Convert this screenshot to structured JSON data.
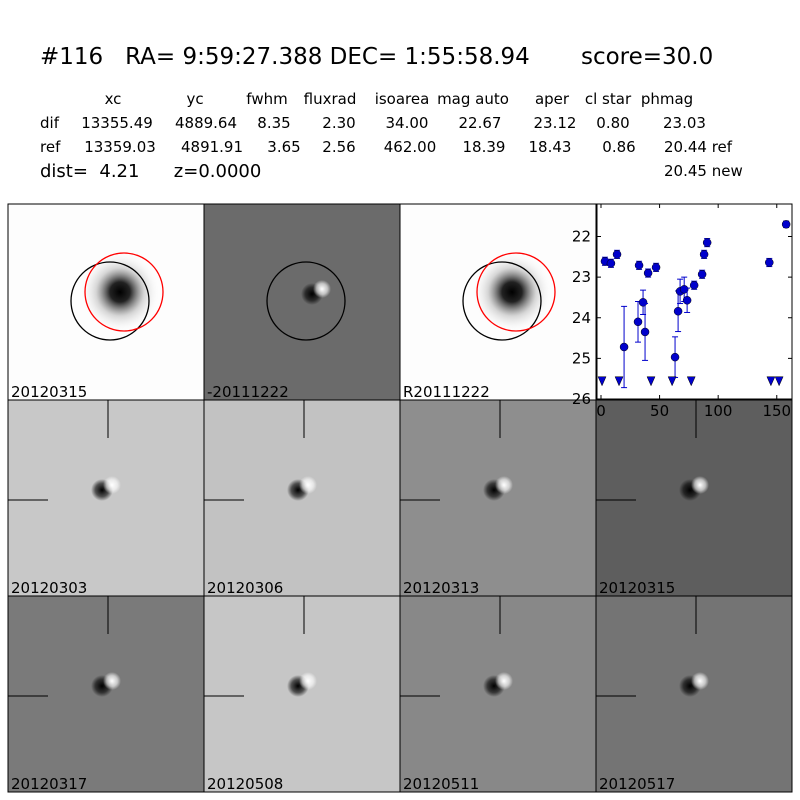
{
  "header": {
    "title": "#116   RA= 9:59:27.388 DEC= 1:55:58.94       score=30.0",
    "columns": [
      "xc",
      "yc",
      "fwhm",
      "fluxrad",
      "isoarea",
      "mag auto",
      "aper",
      "cl star",
      "phmag"
    ],
    "rows": [
      {
        "label": "dif",
        "cells": [
          "13355.49",
          "4889.64",
          "8.35",
          "2.30",
          "34.00",
          "22.67",
          "23.12",
          "0.80",
          "23.03"
        ]
      },
      {
        "label": "ref",
        "cells": [
          "13359.03",
          "4891.91",
          "3.65",
          "2.56",
          "462.00",
          "18.39",
          "18.43",
          "0.86",
          "20.44 ref"
        ]
      }
    ],
    "extra_phmag": "20.45 new",
    "dist_line": "dist=  4.21      z=0.0000"
  },
  "panels": [
    {
      "label": "20120315",
      "background": "#fdfdfd",
      "blob": "dark",
      "circles": true,
      "label_color": "#000"
    },
    {
      "label": "-20111222",
      "background": "#6b6b6b",
      "blob": "dipole",
      "circles": "black",
      "label_color": "#000"
    },
    {
      "label": "R20111222",
      "background": "#fdfdfd",
      "blob": "dark",
      "circles": true,
      "label_color": "#000"
    },
    {
      "label": "20120303",
      "background": "#c8c8c8",
      "blob": "dipole",
      "crosshair": true,
      "label_color": "#000"
    },
    {
      "label": "20120306",
      "background": "#c2c2c2",
      "blob": "dipole",
      "crosshair": true,
      "label_color": "#000"
    },
    {
      "label": "20120313",
      "background": "#8e8e8e",
      "blob": "dipole",
      "crosshair": true,
      "label_color": "#000"
    },
    {
      "label": "20120315",
      "background": "#5e5e5e",
      "blob": "dipole",
      "crosshair": true,
      "label_color": "#ff0000"
    },
    {
      "label": "20120317",
      "background": "#7a7a7a",
      "blob": "dipole",
      "crosshair": true,
      "label_color": "#000"
    },
    {
      "label": "20120508",
      "background": "#c6c6c6",
      "blob": "dipole",
      "crosshair": true,
      "label_color": "#000"
    },
    {
      "label": "20120511",
      "background": "#888888",
      "blob": "dipole",
      "crosshair": true,
      "label_color": "#000"
    },
    {
      "label": "20120517",
      "background": "#747474",
      "blob": "dipole",
      "crosshair": true,
      "label_color": "#000"
    }
  ],
  "light_curve": {
    "type": "scatter",
    "color": "#0000cc",
    "xlim": [
      -3.4,
      163
    ],
    "ylim": [
      26,
      21.2
    ],
    "xticks": [
      0,
      50,
      100,
      150
    ],
    "yticks": [
      22,
      23,
      24,
      25,
      26
    ],
    "points": {
      "x": [
        3.4,
        8.5,
        13.7,
        19.7,
        32.5,
        31.6,
        35.9,
        37.6,
        40.2,
        47,
        63.2,
        65.8,
        67.5,
        71,
        73.5,
        79.5,
        86.3,
        88,
        90.6,
        143.6,
        158
      ],
      "y": [
        22.61,
        22.66,
        22.44,
        24.72,
        22.71,
        24.1,
        23.62,
        24.35,
        22.9,
        22.76,
        24.97,
        23.84,
        23.35,
        23.3,
        23.57,
        23.2,
        22.93,
        22.44,
        22.15,
        22.64,
        21.7
      ],
      "err": [
        0.1,
        0.1,
        0.1,
        1.0,
        0.1,
        0.5,
        0.3,
        0.7,
        0.1,
        0.1,
        0.5,
        0.5,
        0.3,
        0.3,
        0.3,
        0.1,
        0.1,
        0.1,
        0.1,
        0.1,
        0.08
      ]
    },
    "limits": {
      "x": [
        0.9,
        15.4,
        42.7,
        60.7,
        77,
        145,
        152
      ],
      "y": [
        25.55,
        25.55,
        25.55,
        25.55,
        25.55,
        25.55,
        25.55
      ]
    }
  }
}
